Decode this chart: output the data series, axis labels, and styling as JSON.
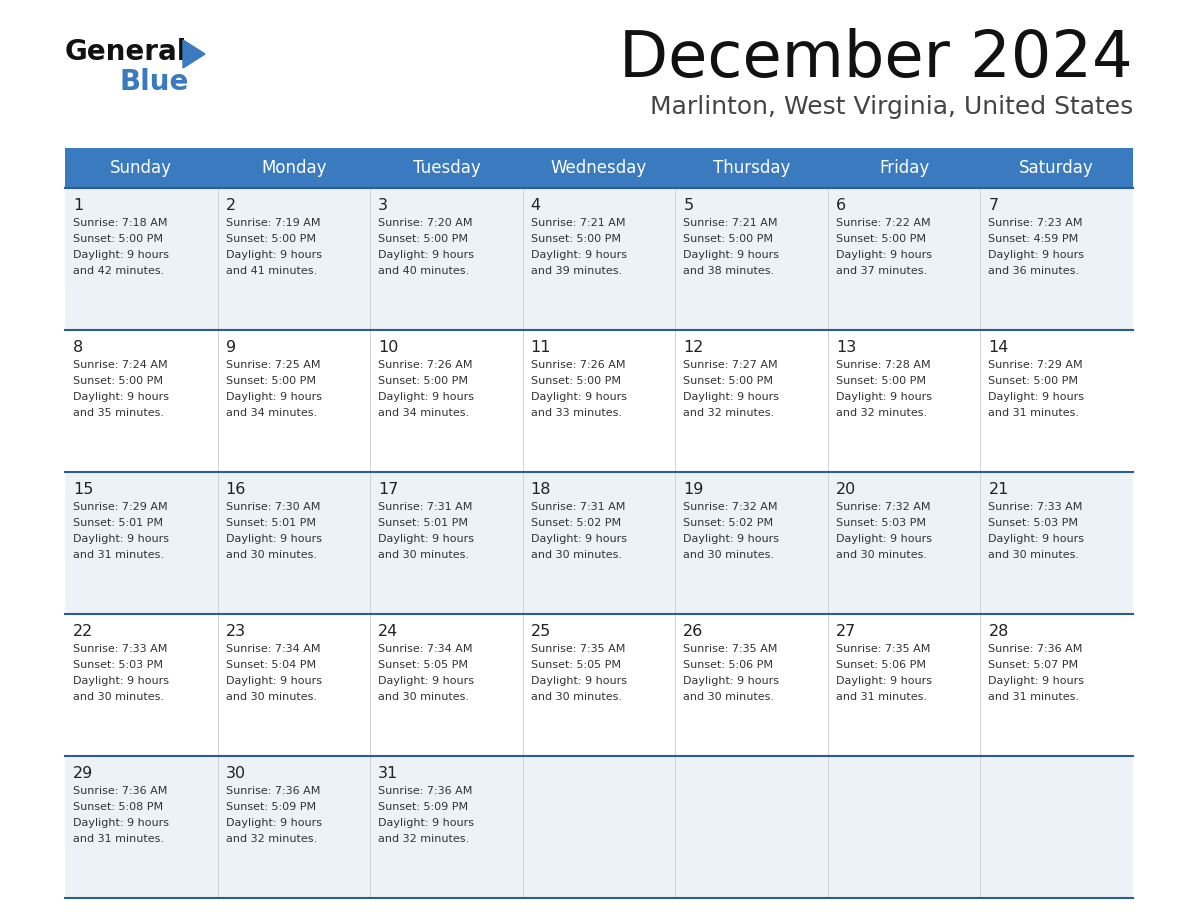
{
  "title": "December 2024",
  "subtitle": "Marlinton, West Virginia, United States",
  "header_bg": "#3a7abf",
  "header_text_color": "#ffffff",
  "row_bg_light": "#edf2f7",
  "row_bg_white": "#ffffff",
  "separator_color": "#2a5c9a",
  "day_names": [
    "Sunday",
    "Monday",
    "Tuesday",
    "Wednesday",
    "Thursday",
    "Friday",
    "Saturday"
  ],
  "days": [
    {
      "day": 1,
      "col": 0,
      "row": 0,
      "sunrise": "7:18 AM",
      "sunset": "5:00 PM",
      "daylight_extra": "and 42 minutes."
    },
    {
      "day": 2,
      "col": 1,
      "row": 0,
      "sunrise": "7:19 AM",
      "sunset": "5:00 PM",
      "daylight_extra": "and 41 minutes."
    },
    {
      "day": 3,
      "col": 2,
      "row": 0,
      "sunrise": "7:20 AM",
      "sunset": "5:00 PM",
      "daylight_extra": "and 40 minutes."
    },
    {
      "day": 4,
      "col": 3,
      "row": 0,
      "sunrise": "7:21 AM",
      "sunset": "5:00 PM",
      "daylight_extra": "and 39 minutes."
    },
    {
      "day": 5,
      "col": 4,
      "row": 0,
      "sunrise": "7:21 AM",
      "sunset": "5:00 PM",
      "daylight_extra": "and 38 minutes."
    },
    {
      "day": 6,
      "col": 5,
      "row": 0,
      "sunrise": "7:22 AM",
      "sunset": "5:00 PM",
      "daylight_extra": "and 37 minutes."
    },
    {
      "day": 7,
      "col": 6,
      "row": 0,
      "sunrise": "7:23 AM",
      "sunset": "4:59 PM",
      "daylight_extra": "and 36 minutes."
    },
    {
      "day": 8,
      "col": 0,
      "row": 1,
      "sunrise": "7:24 AM",
      "sunset": "5:00 PM",
      "daylight_extra": "and 35 minutes."
    },
    {
      "day": 9,
      "col": 1,
      "row": 1,
      "sunrise": "7:25 AM",
      "sunset": "5:00 PM",
      "daylight_extra": "and 34 minutes."
    },
    {
      "day": 10,
      "col": 2,
      "row": 1,
      "sunrise": "7:26 AM",
      "sunset": "5:00 PM",
      "daylight_extra": "and 34 minutes."
    },
    {
      "day": 11,
      "col": 3,
      "row": 1,
      "sunrise": "7:26 AM",
      "sunset": "5:00 PM",
      "daylight_extra": "and 33 minutes."
    },
    {
      "day": 12,
      "col": 4,
      "row": 1,
      "sunrise": "7:27 AM",
      "sunset": "5:00 PM",
      "daylight_extra": "and 32 minutes."
    },
    {
      "day": 13,
      "col": 5,
      "row": 1,
      "sunrise": "7:28 AM",
      "sunset": "5:00 PM",
      "daylight_extra": "and 32 minutes."
    },
    {
      "day": 14,
      "col": 6,
      "row": 1,
      "sunrise": "7:29 AM",
      "sunset": "5:00 PM",
      "daylight_extra": "and 31 minutes."
    },
    {
      "day": 15,
      "col": 0,
      "row": 2,
      "sunrise": "7:29 AM",
      "sunset": "5:01 PM",
      "daylight_extra": "and 31 minutes."
    },
    {
      "day": 16,
      "col": 1,
      "row": 2,
      "sunrise": "7:30 AM",
      "sunset": "5:01 PM",
      "daylight_extra": "and 30 minutes."
    },
    {
      "day": 17,
      "col": 2,
      "row": 2,
      "sunrise": "7:31 AM",
      "sunset": "5:01 PM",
      "daylight_extra": "and 30 minutes."
    },
    {
      "day": 18,
      "col": 3,
      "row": 2,
      "sunrise": "7:31 AM",
      "sunset": "5:02 PM",
      "daylight_extra": "and 30 minutes."
    },
    {
      "day": 19,
      "col": 4,
      "row": 2,
      "sunrise": "7:32 AM",
      "sunset": "5:02 PM",
      "daylight_extra": "and 30 minutes."
    },
    {
      "day": 20,
      "col": 5,
      "row": 2,
      "sunrise": "7:32 AM",
      "sunset": "5:03 PM",
      "daylight_extra": "and 30 minutes."
    },
    {
      "day": 21,
      "col": 6,
      "row": 2,
      "sunrise": "7:33 AM",
      "sunset": "5:03 PM",
      "daylight_extra": "and 30 minutes."
    },
    {
      "day": 22,
      "col": 0,
      "row": 3,
      "sunrise": "7:33 AM",
      "sunset": "5:03 PM",
      "daylight_extra": "and 30 minutes."
    },
    {
      "day": 23,
      "col": 1,
      "row": 3,
      "sunrise": "7:34 AM",
      "sunset": "5:04 PM",
      "daylight_extra": "and 30 minutes."
    },
    {
      "day": 24,
      "col": 2,
      "row": 3,
      "sunrise": "7:34 AM",
      "sunset": "5:05 PM",
      "daylight_extra": "and 30 minutes."
    },
    {
      "day": 25,
      "col": 3,
      "row": 3,
      "sunrise": "7:35 AM",
      "sunset": "5:05 PM",
      "daylight_extra": "and 30 minutes."
    },
    {
      "day": 26,
      "col": 4,
      "row": 3,
      "sunrise": "7:35 AM",
      "sunset": "5:06 PM",
      "daylight_extra": "and 30 minutes."
    },
    {
      "day": 27,
      "col": 5,
      "row": 3,
      "sunrise": "7:35 AM",
      "sunset": "5:06 PM",
      "daylight_extra": "and 31 minutes."
    },
    {
      "day": 28,
      "col": 6,
      "row": 3,
      "sunrise": "7:36 AM",
      "sunset": "5:07 PM",
      "daylight_extra": "and 31 minutes."
    },
    {
      "day": 29,
      "col": 0,
      "row": 4,
      "sunrise": "7:36 AM",
      "sunset": "5:08 PM",
      "daylight_extra": "and 31 minutes."
    },
    {
      "day": 30,
      "col": 1,
      "row": 4,
      "sunrise": "7:36 AM",
      "sunset": "5:09 PM",
      "daylight_extra": "and 32 minutes."
    },
    {
      "day": 31,
      "col": 2,
      "row": 4,
      "sunrise": "7:36 AM",
      "sunset": "5:09 PM",
      "daylight_extra": "and 32 minutes."
    }
  ]
}
